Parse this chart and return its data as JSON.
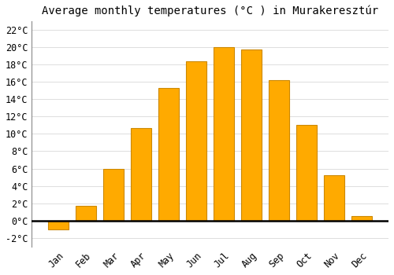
{
  "title": "Average monthly temperatures (°C ) in Murakerесztúr",
  "months": [
    "Jan",
    "Feb",
    "Mar",
    "Apr",
    "May",
    "Jun",
    "Jul",
    "Aug",
    "Sep",
    "Oct",
    "Nov",
    "Dec"
  ],
  "values": [
    -1.0,
    1.7,
    6.0,
    10.7,
    15.3,
    18.4,
    20.0,
    19.7,
    16.2,
    11.0,
    5.2,
    0.5
  ],
  "bar_color": "#FFAA00",
  "bar_edge_color": "#CC8800",
  "background_color": "#FFFFFF",
  "grid_color": "#DDDDDD",
  "ylim": [
    -3,
    23
  ],
  "yticks": [
    -2,
    0,
    2,
    4,
    6,
    8,
    10,
    12,
    14,
    16,
    18,
    20,
    22
  ],
  "title_fontsize": 10,
  "tick_fontsize": 8.5,
  "figsize": [
    5.0,
    3.5
  ],
  "dpi": 100,
  "bar_width": 0.75
}
